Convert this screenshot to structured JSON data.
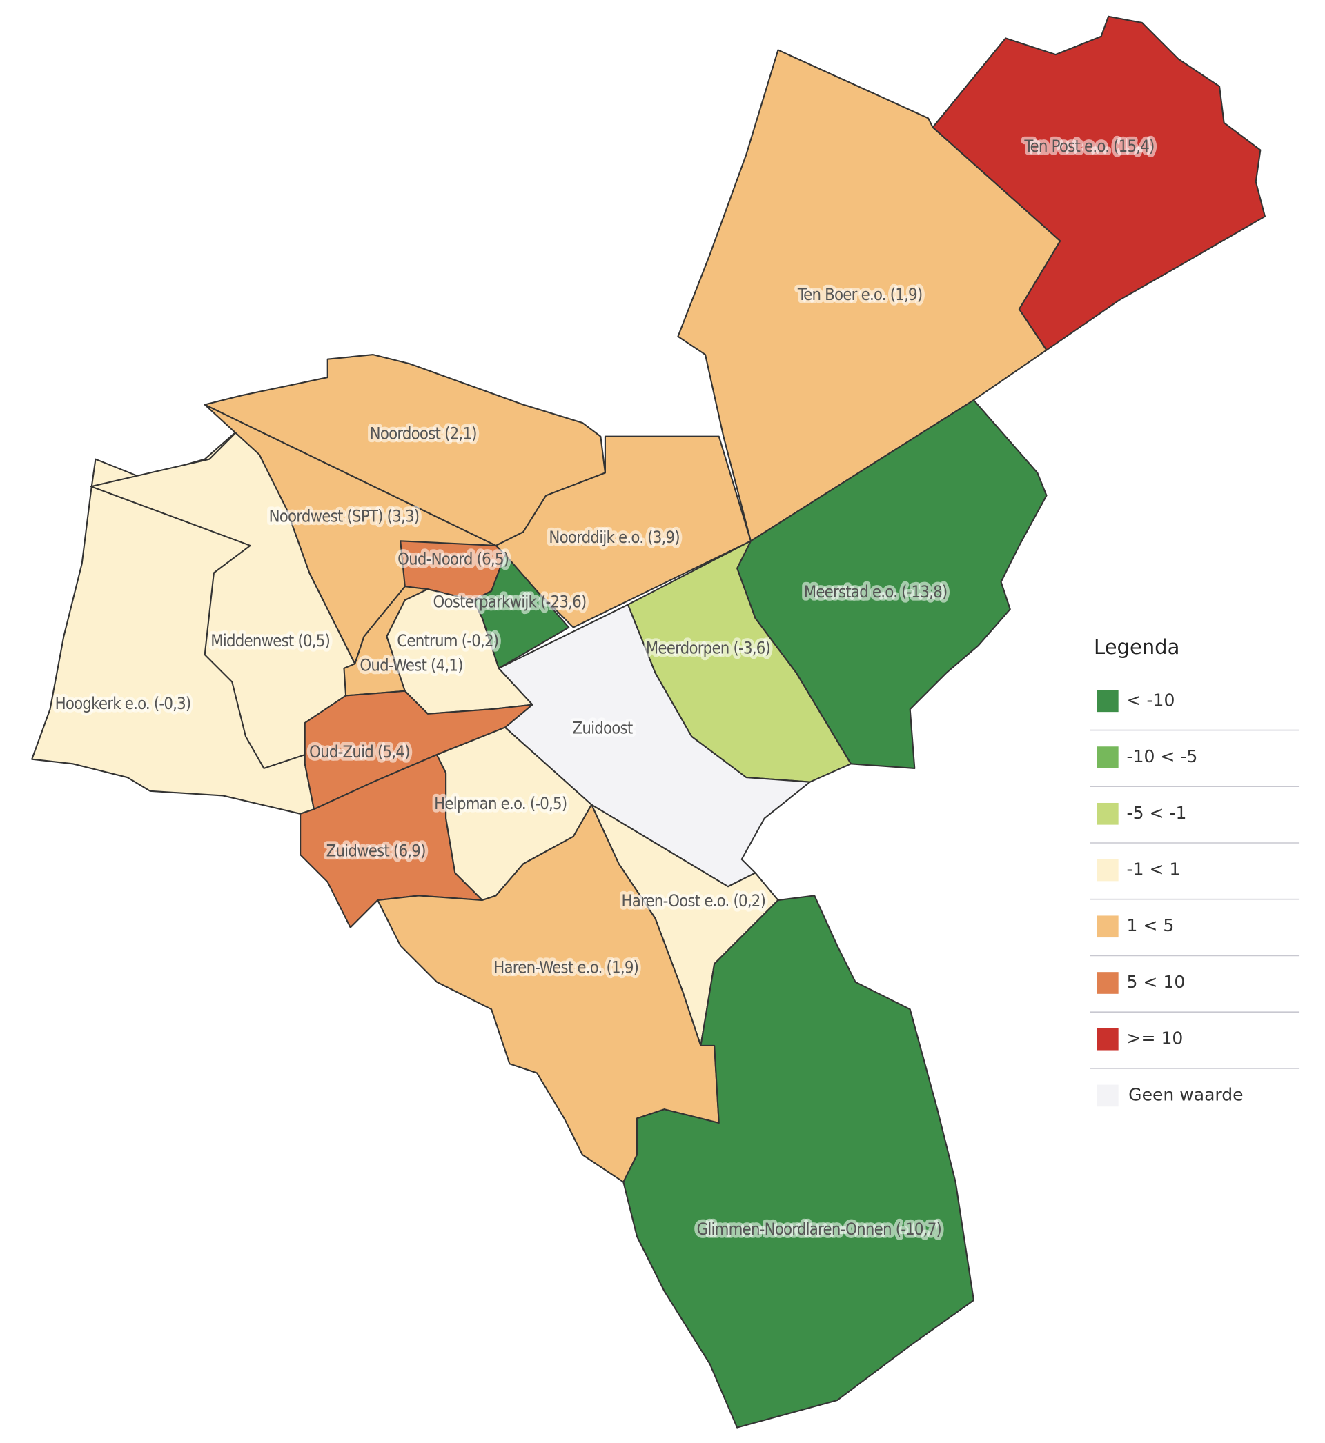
{
  "regions": [
    {
      "label": "Hoogkerk e.o. (-0,3)",
      "value": -0.3
    },
    {
      "label": "Middenwest (0,5)",
      "value": 0.5
    },
    {
      "label": "Noordwest (SPT) (3,3)",
      "value": 3.3
    },
    {
      "label": "Noordoost (2,1)",
      "value": 2.1
    },
    {
      "label": "Noorddijk e.o. (3,9)",
      "value": 3.9
    },
    {
      "label": "Ten Boer e.o. (1,9)",
      "value": 1.9
    },
    {
      "label": "Ten Post e.o. (15,4)",
      "value": 15.4
    },
    {
      "label": "Meerstad e.o. (-13,8)",
      "value": -13.8
    },
    {
      "label": "Meerdorpen (-3,6)",
      "value": -3.6
    },
    {
      "label": "Zuidoost",
      "value": null
    },
    {
      "label": "Oud-Noord (6,5)",
      "value": 6.5
    },
    {
      "label": "Oosterparkwijk (-23,6)",
      "value": -23.6
    },
    {
      "label": "Oud-West (4,1)",
      "value": 4.1
    },
    {
      "label": "Centrum (-0,2)",
      "value": -0.2
    },
    {
      "label": "Oud-Zuid (5,4)",
      "value": 5.4
    },
    {
      "label": "Zuidwest (6,9)",
      "value": 6.9
    },
    {
      "label": "Helpman e.o. (-0,5)",
      "value": -0.5
    },
    {
      "label": "Haren-Oost e.o. (0,2)",
      "value": 0.2
    },
    {
      "label": "Haren-West e.o. (1,9)",
      "value": 1.9
    },
    {
      "label": "Glimmen-Noordlaren-Onnen (-10,7)",
      "value": -10.7
    }
  ],
  "legend": {
    "title": "Legenda",
    "items": [
      {
        "label": "< -10",
        "color": "#3d8e48",
        "max": -10
      },
      {
        "label": "-10 < -5",
        "color": "#76b85b",
        "min": -10,
        "max": -5
      },
      {
        "label": "-5 < -1",
        "color": "#c5da7b",
        "min": -5,
        "max": -1
      },
      {
        "label": "-1 < 1",
        "color": "#fdf1cf",
        "min": -1,
        "max": 1
      },
      {
        "label": "1 < 5",
        "color": "#f4c07d",
        "min": 1,
        "max": 5
      },
      {
        "label": "5 < 10",
        "color": "#e0804f",
        "min": 5,
        "max": 10
      },
      {
        "label": ">= 10",
        "color": "#c9312c",
        "min": 10
      },
      {
        "label": "Geen waarde",
        "color": "#f3f3f6"
      }
    ]
  }
}
